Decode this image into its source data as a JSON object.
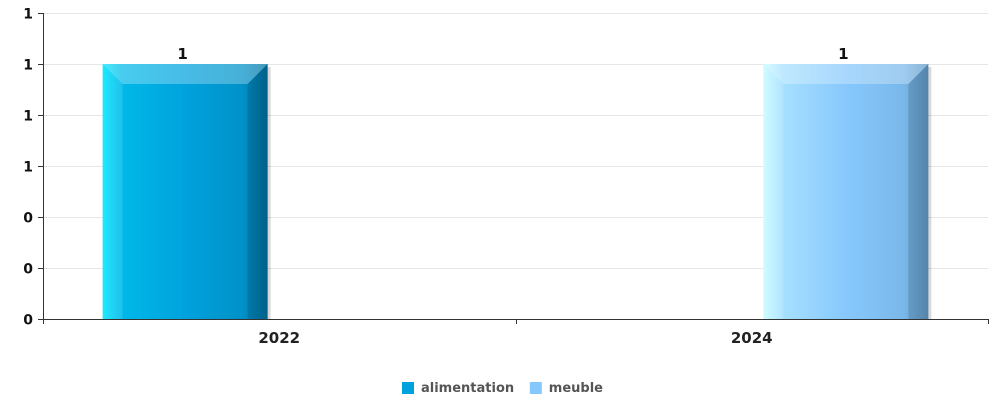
{
  "chart_data": {
    "type": "bar",
    "categories": [
      "2022",
      "2024"
    ],
    "series": [
      {
        "name": "alimentation",
        "values": [
          1,
          null
        ],
        "color": "#00a2dd"
      },
      {
        "name": "meuble",
        "values": [
          null,
          1
        ],
        "color": "#87c8fc"
      }
    ],
    "data_labels": [
      "1",
      "1"
    ],
    "ytick_values": [
      0,
      0.2,
      0.4,
      0.6,
      0.8,
      1.0,
      1.2
    ],
    "ytick_labels": [
      "0",
      "0",
      "0",
      "1",
      "1",
      "1",
      "1"
    ],
    "ylim": [
      0,
      1.2
    ],
    "grid": true,
    "legend_position": "bottom-center",
    "title": "",
    "xlabel": "",
    "ylabel": ""
  }
}
